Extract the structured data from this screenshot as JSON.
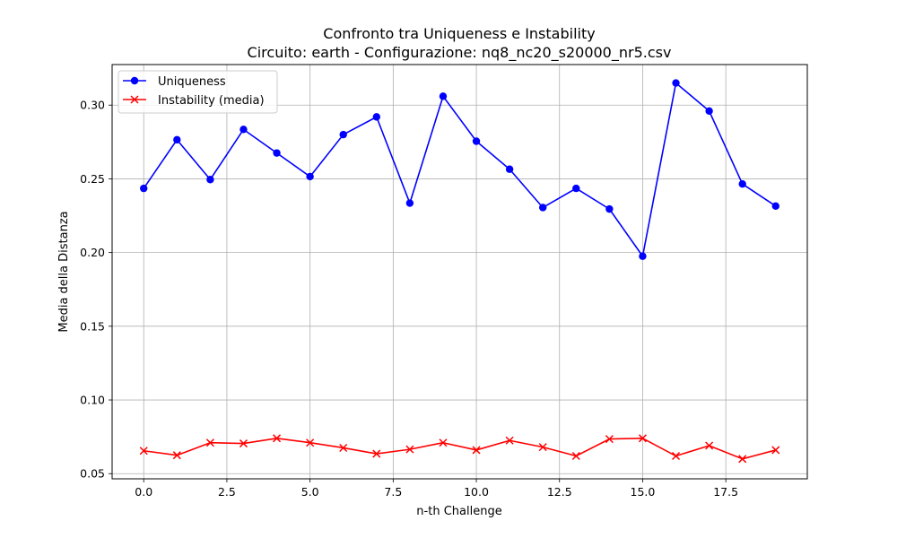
{
  "chart_data": {
    "type": "line",
    "title": "Confronto tra Uniqueness e Instability",
    "subtitle": "Circuito: earth - Configurazione: nq8_nc20_s20000_nr5.csv",
    "xlabel": "n-th Challenge",
    "ylabel": "Media della Distanza",
    "xlim": [
      -0.95,
      19.95
    ],
    "ylim": [
      0.0465,
      0.3275
    ],
    "xticks": [
      0.0,
      2.5,
      5.0,
      7.5,
      10.0,
      12.5,
      15.0,
      17.5
    ],
    "xtick_labels": [
      "0.0",
      "2.5",
      "5.0",
      "7.5",
      "10.0",
      "12.5",
      "15.0",
      "17.5"
    ],
    "yticks": [
      0.05,
      0.1,
      0.15,
      0.2,
      0.25,
      0.3
    ],
    "ytick_labels": [
      "0.05",
      "0.10",
      "0.15",
      "0.20",
      "0.25",
      "0.30"
    ],
    "grid": true,
    "legend_position": "top-left",
    "x": [
      0,
      1,
      2,
      3,
      4,
      5,
      6,
      7,
      8,
      9,
      10,
      11,
      12,
      13,
      14,
      15,
      16,
      17,
      18,
      19
    ],
    "series": [
      {
        "name": "Uniqueness",
        "color": "#0000ff",
        "marker": "circle",
        "values": [
          0.2435,
          0.2765,
          0.2495,
          0.2835,
          0.2675,
          0.2515,
          0.28,
          0.292,
          0.2335,
          0.306,
          0.2755,
          0.2565,
          0.2305,
          0.2435,
          0.2295,
          0.1975,
          0.315,
          0.296,
          0.2465,
          0.2315
        ]
      },
      {
        "name": "Instability (media)",
        "color": "#ff0000",
        "marker": "x",
        "values": [
          0.0655,
          0.0625,
          0.071,
          0.0705,
          0.074,
          0.071,
          0.0675,
          0.0635,
          0.0665,
          0.071,
          0.066,
          0.0725,
          0.068,
          0.062,
          0.0735,
          0.074,
          0.062,
          0.069,
          0.06,
          0.066
        ]
      }
    ]
  }
}
